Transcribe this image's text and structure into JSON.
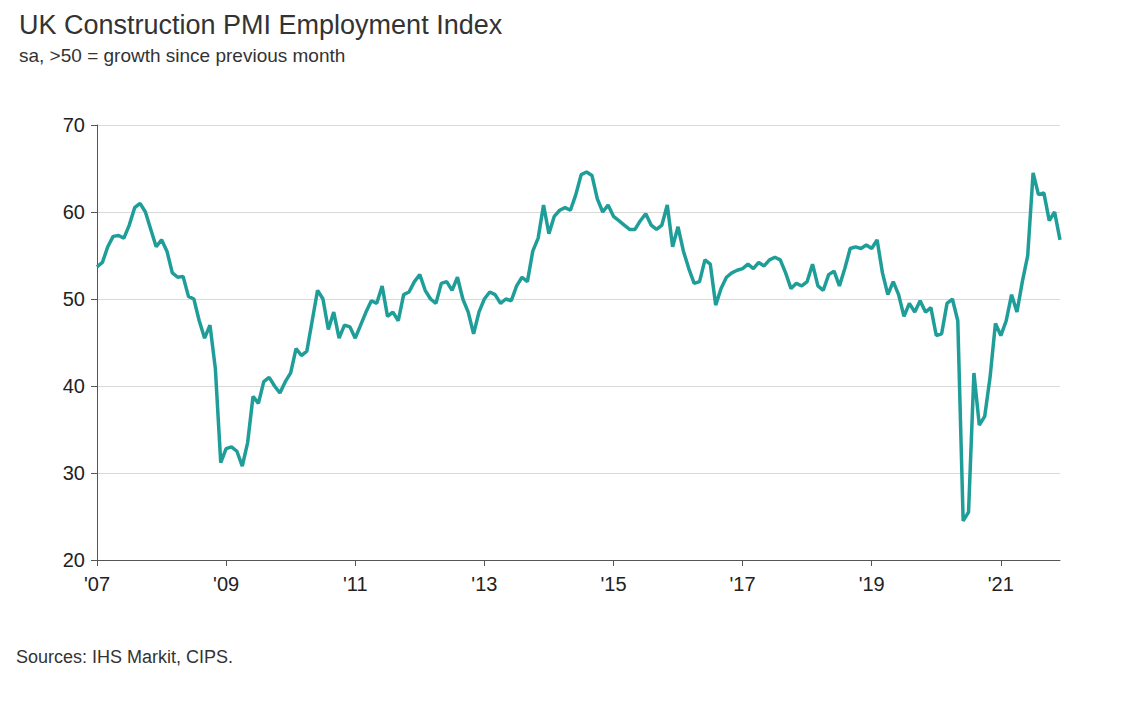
{
  "chart_data": {
    "type": "line",
    "title": "UK Construction PMI Employment Index",
    "subtitle": "sa, >50 = growth since previous month",
    "source": "Sources: IHS Markit, CIPS.",
    "color": "#1f9e99",
    "grid": true,
    "ylim": [
      20,
      70
    ],
    "yticks": [
      20,
      30,
      40,
      50,
      60,
      70
    ],
    "categories": [
      "'07",
      null,
      null,
      null,
      null,
      null,
      null,
      null,
      null,
      null,
      null,
      null,
      null,
      null,
      null,
      null,
      null,
      null,
      null,
      null,
      null,
      null,
      null,
      null,
      "'09",
      null,
      null,
      null,
      null,
      null,
      null,
      null,
      null,
      null,
      null,
      null,
      null,
      null,
      null,
      null,
      null,
      null,
      null,
      null,
      null,
      null,
      null,
      null,
      "'11",
      null,
      null,
      null,
      null,
      null,
      null,
      null,
      null,
      null,
      null,
      null,
      null,
      null,
      null,
      null,
      null,
      null,
      null,
      null,
      null,
      null,
      null,
      null,
      "'13",
      null,
      null,
      null,
      null,
      null,
      null,
      null,
      null,
      null,
      null,
      null,
      null,
      null,
      null,
      null,
      null,
      null,
      null,
      null,
      null,
      null,
      null,
      null,
      "'15",
      null,
      null,
      null,
      null,
      null,
      null,
      null,
      null,
      null,
      null,
      null,
      null,
      null,
      null,
      null,
      null,
      null,
      null,
      null,
      null,
      null,
      null,
      null,
      "'17",
      null,
      null,
      null,
      null,
      null,
      null,
      null,
      null,
      null,
      null,
      null,
      null,
      null,
      null,
      null,
      null,
      null,
      null,
      null,
      null,
      null,
      null,
      null,
      "'19",
      null,
      null,
      null,
      null,
      null,
      null,
      null,
      null,
      null,
      null,
      null,
      null,
      null,
      null,
      null,
      null,
      null,
      null,
      null,
      null,
      null,
      null,
      null,
      "'21",
      null,
      null,
      null,
      null,
      null,
      null,
      null,
      null,
      null,
      null,
      null
    ],
    "values": [
      53.7,
      54.2,
      56.0,
      57.2,
      57.3,
      57.0,
      58.5,
      60.5,
      61.0,
      60.0,
      58.0,
      56.0,
      56.8,
      55.5,
      53.0,
      52.5,
      52.6,
      50.3,
      50.0,
      47.5,
      45.5,
      47.0,
      42.0,
      31.2,
      32.8,
      33.0,
      32.5,
      30.8,
      33.5,
      38.8,
      38.0,
      40.5,
      41.0,
      40.0,
      39.2,
      40.5,
      41.5,
      44.3,
      43.5,
      44.0,
      47.5,
      51.0,
      50.0,
      46.5,
      48.5,
      45.5,
      47.0,
      46.8,
      45.5,
      47.0,
      48.5,
      49.8,
      49.5,
      51.5,
      48.0,
      48.5,
      47.5,
      50.5,
      50.8,
      52.0,
      52.8,
      51.0,
      50.0,
      49.5,
      51.8,
      52.0,
      51.0,
      52.5,
      50.0,
      48.5,
      46.0,
      48.5,
      50.0,
      50.8,
      50.5,
      49.5,
      50.0,
      49.8,
      51.5,
      52.5,
      52.0,
      55.5,
      57.0,
      60.8,
      57.5,
      59.5,
      60.2,
      60.5,
      60.2,
      62.0,
      64.3,
      64.6,
      64.2,
      61.5,
      60.0,
      60.8,
      59.5,
      59.0,
      58.5,
      58.0,
      58.0,
      59.0,
      59.8,
      58.5,
      58.0,
      58.5,
      60.8,
      56.0,
      58.3,
      55.5,
      53.5,
      51.8,
      52.0,
      54.5,
      54.0,
      49.3,
      51.2,
      52.5,
      53.0,
      53.3,
      53.5,
      54.0,
      53.5,
      54.2,
      53.8,
      54.5,
      54.8,
      54.5,
      53.0,
      51.2,
      51.8,
      51.5,
      52.0,
      54.0,
      51.5,
      51.0,
      52.8,
      53.2,
      51.5,
      53.5,
      55.8,
      56.0,
      55.8,
      56.2,
      55.8,
      56.8,
      53.0,
      50.5,
      52.0,
      50.5,
      48.0,
      49.5,
      48.5,
      49.8,
      48.5,
      49.0,
      45.8,
      46.0,
      49.5,
      50.0,
      47.5,
      24.5,
      25.5,
      41.5,
      35.5,
      36.5,
      41.0,
      47.2,
      45.8,
      47.5,
      50.5,
      48.5,
      52.0,
      55.0,
      64.5,
      62.0,
      62.2,
      59.0,
      60.0,
      56.8
    ]
  }
}
